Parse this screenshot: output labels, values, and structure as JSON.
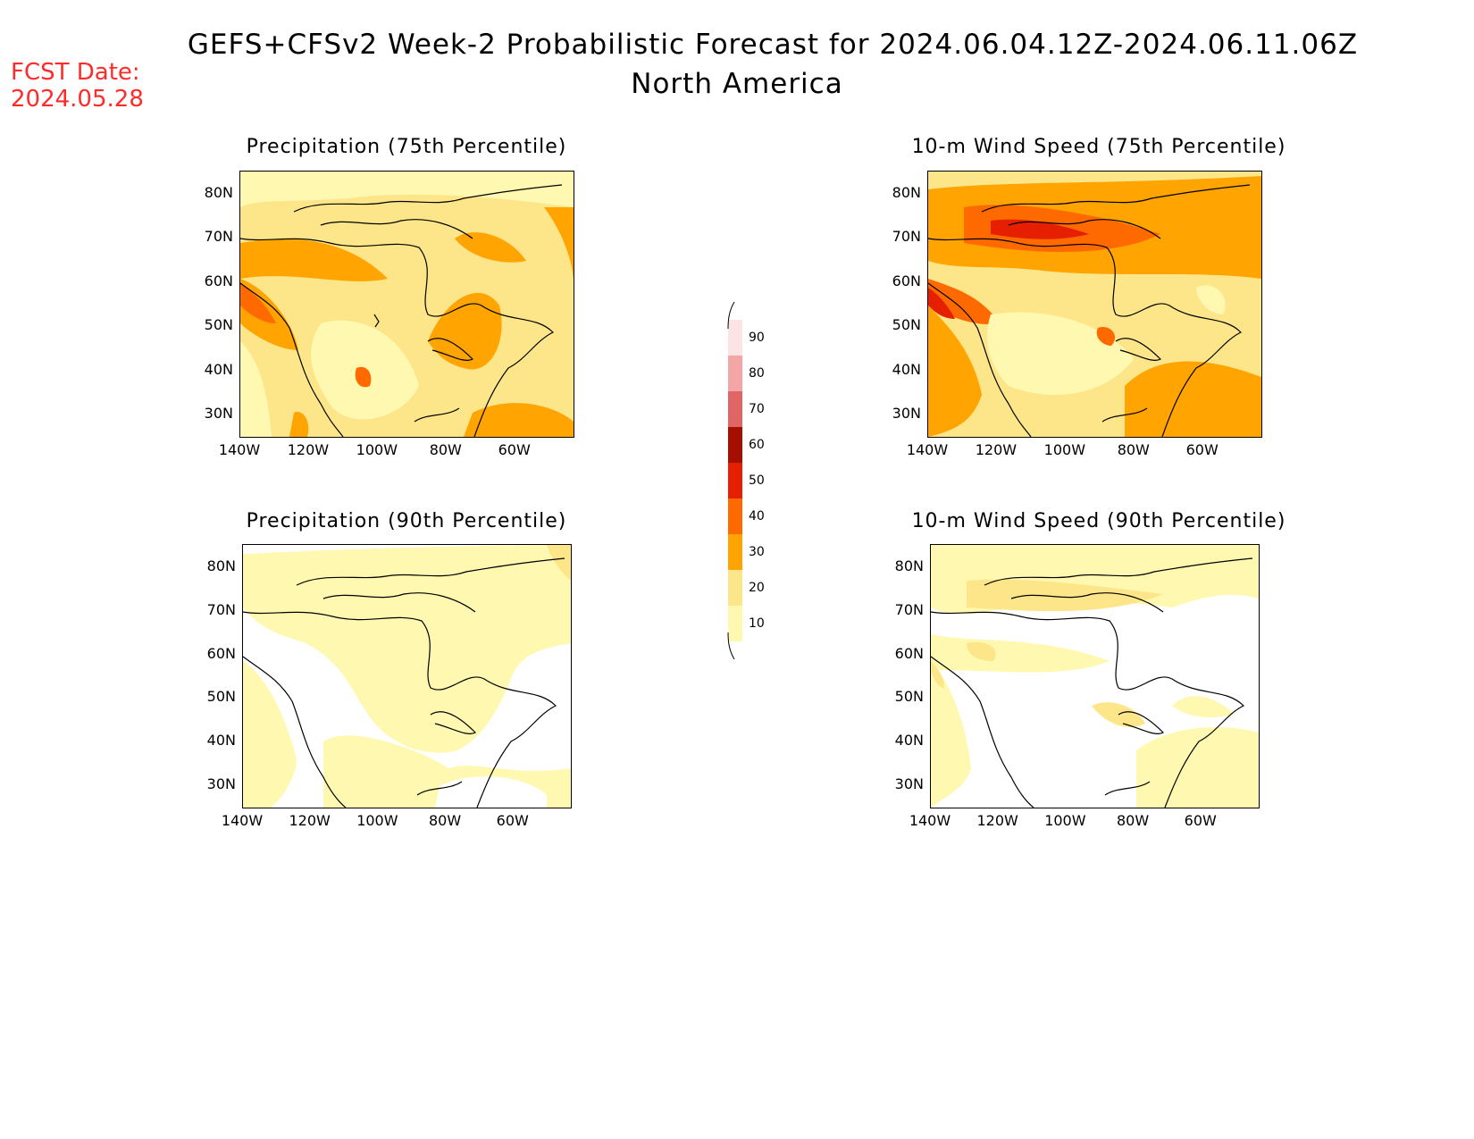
{
  "header": {
    "title_line1": "GEFS+CFSv2 Week-2 Probabilistic Forecast for 2024.06.04.12Z-2024.06.11.06Z",
    "title_line2": "North America",
    "fcst_label": "FCST Date:",
    "fcst_date": "2024.05.28"
  },
  "panels": [
    {
      "title": "Precipitation (75th Percentile)"
    },
    {
      "title": "10-m Wind Speed (75th Percentile)"
    },
    {
      "title": "Precipitation (90th Percentile)"
    },
    {
      "title": "10-m Wind Speed (90th Percentile)"
    }
  ],
  "axes": {
    "lat_labels": [
      "80N",
      "70N",
      "60N",
      "50N",
      "40N",
      "30N"
    ],
    "lon_labels": [
      "140W",
      "120W",
      "100W",
      "80W",
      "60W"
    ]
  },
  "colorbar": {
    "levels": [
      "10",
      "20",
      "30",
      "40",
      "50",
      "60",
      "70",
      "80",
      "90"
    ],
    "colors": [
      "#fff8b0",
      "#fde68a",
      "#ffa400",
      "#ff6a00",
      "#e51f00",
      "#a50f00",
      "#e06666",
      "#f4a6a6",
      "#fde4e4"
    ]
  }
}
